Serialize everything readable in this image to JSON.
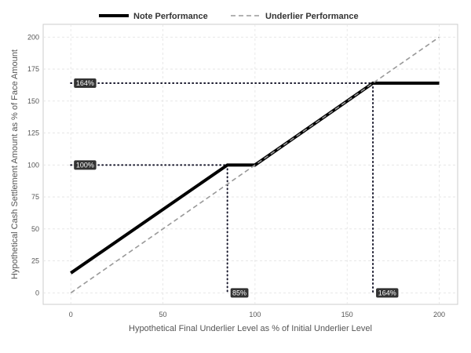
{
  "chart_data": {
    "type": "line",
    "xlabel": "Hypothetical Final Underlier Level as % of Initial Underlier Level",
    "ylabel": "Hypothetical Cash Settlement Amount as % of Face Amount",
    "xlim": [
      -15,
      210
    ],
    "ylim": [
      -9,
      210
    ],
    "x_ticks": [
      0,
      50,
      100,
      150,
      200
    ],
    "y_ticks": [
      0,
      25,
      50,
      75,
      100,
      125,
      150,
      175,
      200
    ],
    "grid": true,
    "legend_position": "top",
    "series": [
      {
        "name": "Note Performance",
        "style": "solid",
        "color": "#000000",
        "points": [
          [
            0,
            15.5
          ],
          [
            85,
            100
          ],
          [
            100,
            100
          ],
          [
            164,
            164
          ],
          [
            200,
            164
          ]
        ]
      },
      {
        "name": "Underlier Performance",
        "style": "dashed",
        "color": "#999999",
        "points": [
          [
            0,
            0
          ],
          [
            200,
            200
          ]
        ]
      }
    ],
    "reference_lines": [
      {
        "from": [
          0,
          164
        ],
        "to": [
          164,
          164
        ]
      },
      {
        "from": [
          0,
          100
        ],
        "to": [
          85,
          100
        ]
      },
      {
        "from": [
          85,
          100
        ],
        "to": [
          85,
          0
        ]
      },
      {
        "from": [
          164,
          164
        ],
        "to": [
          164,
          0
        ]
      }
    ],
    "annotations": [
      {
        "text": "164%",
        "x": 0,
        "y": 164,
        "axis": "y"
      },
      {
        "text": "100%",
        "x": 0,
        "y": 100,
        "axis": "y"
      },
      {
        "text": "85%",
        "x": 85,
        "y": 0,
        "axis": "x"
      },
      {
        "text": "164%",
        "x": 164,
        "y": 0,
        "axis": "x"
      }
    ]
  }
}
